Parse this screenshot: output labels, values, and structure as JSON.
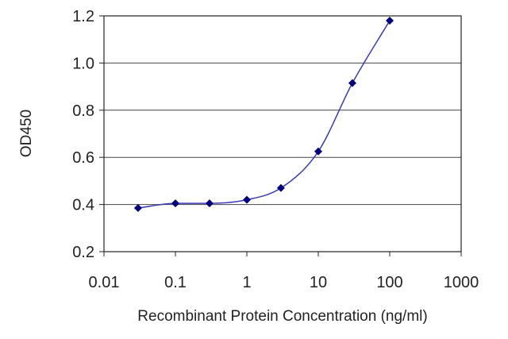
{
  "chart_data": {
    "type": "line",
    "title": "",
    "xlabel": "Recombinant Protein Concentration (ng/ml)",
    "ylabel": "OD450",
    "xscale": "log",
    "xlim": [
      0.01,
      1000
    ],
    "ylim": [
      0.2,
      1.2
    ],
    "x_ticks": [
      "0.01",
      "0.1",
      "1",
      "10",
      "100",
      "1000"
    ],
    "y_ticks": [
      "0.2",
      "0.4",
      "0.6",
      "0.8",
      "1.0",
      "1.2"
    ],
    "grid": "horizontal",
    "legend": "none",
    "series": [
      {
        "x": [
          0.03,
          0.1,
          0.3,
          1,
          3,
          10,
          30,
          100
        ],
        "y": [
          0.385,
          0.405,
          0.405,
          0.42,
          0.47,
          0.625,
          0.915,
          1.18
        ]
      }
    ],
    "colors": {
      "line": "#3b3bb5",
      "marker": "#00007f",
      "grid": "#444444",
      "axis": "#222222"
    }
  }
}
